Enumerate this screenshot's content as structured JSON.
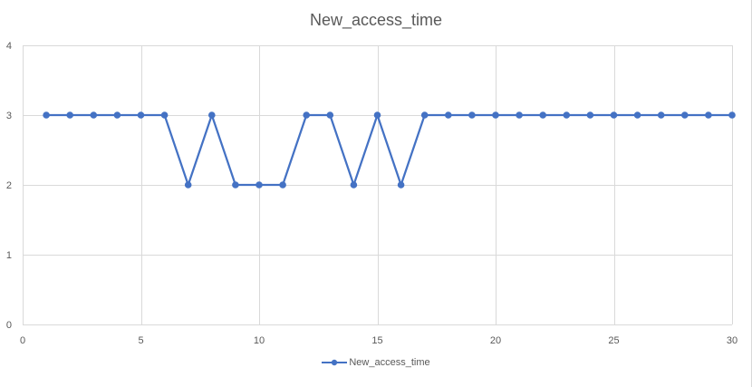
{
  "chart_data": {
    "type": "line",
    "title": "New_access_time",
    "xlabel": "",
    "ylabel": "",
    "xlim": [
      0,
      30
    ],
    "ylim": [
      0,
      4
    ],
    "x_ticks": [
      0,
      5,
      10,
      15,
      20,
      25,
      30
    ],
    "y_ticks": [
      0,
      1,
      2,
      3,
      4
    ],
    "grid": true,
    "legend_position": "bottom",
    "series": [
      {
        "name": "New_access_time",
        "color": "#4472c4",
        "marker": "circle",
        "x": [
          1,
          2,
          3,
          4,
          5,
          6,
          7,
          8,
          9,
          10,
          11,
          12,
          13,
          14,
          15,
          16,
          17,
          18,
          19,
          20,
          21,
          22,
          23,
          24,
          25,
          26,
          27,
          28,
          29,
          30
        ],
        "values": [
          3,
          3,
          3,
          3,
          3,
          3,
          2,
          3,
          2,
          2,
          2,
          3,
          3,
          2,
          3,
          2,
          3,
          3,
          3,
          3,
          3,
          3,
          3,
          3,
          3,
          3,
          3,
          3,
          3,
          3
        ]
      }
    ]
  },
  "colors": {
    "grid": "#d9d9d9",
    "axis_text": "#595959",
    "series": "#4472c4"
  }
}
